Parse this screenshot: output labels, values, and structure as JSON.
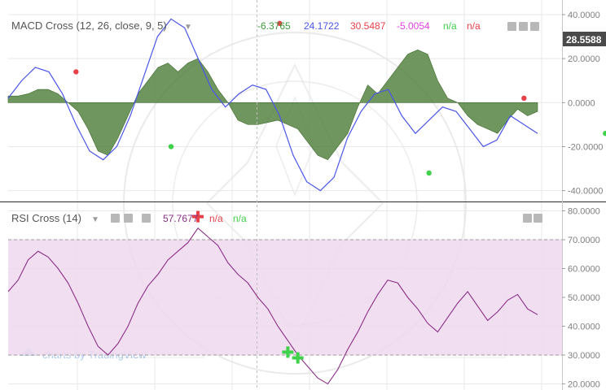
{
  "colors": {
    "histogram": "#4f7f3a",
    "macd_line": "#4a56e8",
    "cross_up": "#3fd14a",
    "cross_down": "#e8414a",
    "rsi_line": "#8a2f86",
    "rsi_band": "#efd9ef",
    "grid": "#e8e8e8",
    "axis_text": "#7f7f7f",
    "watermark": "#cfcfcf"
  },
  "macd_panel": {
    "label": "MACD Cross (12, 26, close, 9, 5)",
    "values": [
      {
        "text": "-6.3765",
        "color": "#3a9a3a"
      },
      {
        "text": "24.1722",
        "color": "#4a56e8"
      },
      {
        "text": "30.5487",
        "color": "#e8414a"
      },
      {
        "text": "-5.0054",
        "color": "#e040e0"
      },
      {
        "text": "n/a",
        "color": "#3fd14a"
      },
      {
        "text": "n/a",
        "color": "#e8414a"
      }
    ],
    "current_value": "28.5588",
    "icons": [
      "chart-settings-icon",
      "chart-settings-icon",
      "close-icon"
    ]
  },
  "rsi_panel": {
    "label": "RSI Cross (14)",
    "values": [
      {
        "text": "57.7677",
        "color": "#8a2f86"
      },
      {
        "text": "n/a",
        "color": "#e8414a"
      },
      {
        "text": "n/a",
        "color": "#3fd14a"
      }
    ],
    "icons": [
      "chart-settings-icon",
      "chart-settings-icon",
      "close-icon"
    ]
  },
  "watermark": {
    "logo_text": "charts by TradingView"
  },
  "chart_data": [
    {
      "type": "line",
      "title": "MACD Cross (12, 26, close, 9, 5)",
      "y_ticks": [
        "40.0000",
        "20.0000",
        "0.0000",
        "-20.0000",
        "-40.0000"
      ],
      "ylim": [
        -42,
        40
      ],
      "grid": true,
      "series": [
        {
          "kind": "area",
          "values": [
            3,
            3,
            4,
            6,
            6,
            4,
            0,
            -4,
            -12,
            -22,
            -24,
            -16,
            -6,
            4,
            10,
            16,
            18,
            14,
            18,
            20,
            14,
            6,
            0,
            -8,
            -10,
            -10,
            -9,
            -8,
            -10,
            -12,
            -18,
            -24,
            -26,
            -20,
            -14,
            -2,
            8,
            4,
            10,
            16,
            22,
            24,
            22,
            10,
            2,
            0,
            -6,
            -10,
            -12,
            -14,
            -8,
            -3,
            -6,
            -4
          ]
        },
        {
          "kind": "line",
          "values": [
            2,
            10,
            16,
            14,
            4,
            -10,
            -22,
            -26,
            -20,
            -6,
            12,
            30,
            38,
            34,
            20,
            6,
            -2,
            4,
            8,
            6,
            -6,
            -24,
            -36,
            -40,
            -34,
            -16,
            -4,
            4,
            6,
            -6,
            -14,
            -8,
            -2,
            -4,
            -12,
            -20,
            -17,
            -6,
            -10,
            -14
          ]
        }
      ],
      "markers": [
        {
          "x": 5,
          "y": 14,
          "kind": "cross-down"
        },
        {
          "x": 12,
          "y": -20,
          "kind": "cross-up"
        },
        {
          "x": 20,
          "y": 36,
          "kind": "cross-down"
        },
        {
          "x": 31,
          "y": -32,
          "kind": "cross-up"
        },
        {
          "x": 38,
          "y": 2,
          "kind": "cross-down"
        },
        {
          "x": 44,
          "y": -14,
          "kind": "cross-up"
        },
        {
          "x": 48,
          "y": -9,
          "kind": "cross-down"
        }
      ]
    },
    {
      "type": "line",
      "title": "RSI Cross (14)",
      "y_ticks": [
        "80.0000",
        "70.0000",
        "60.0000",
        "50.0000",
        "40.0000",
        "30.0000",
        "20.0000"
      ],
      "ylim": [
        19,
        81
      ],
      "bands": [
        70,
        30
      ],
      "series": [
        {
          "values": [
            52,
            56,
            63,
            66,
            64,
            60,
            55,
            48,
            40,
            33,
            30,
            34,
            40,
            48,
            54,
            58,
            63,
            66,
            69,
            74,
            71,
            68,
            62,
            58,
            55,
            50,
            46,
            40,
            35,
            30,
            26,
            22,
            20,
            25,
            32,
            38,
            45,
            51,
            56,
            55,
            50,
            46,
            41,
            38,
            43,
            48,
            52,
            47,
            42,
            45,
            49,
            51,
            46,
            44
          ]
        }
      ],
      "markers": [
        {
          "x": 19,
          "y": 78,
          "kind": "cross-down"
        },
        {
          "x": 28,
          "y": 31,
          "kind": "cross-up"
        },
        {
          "x": 29,
          "y": 29,
          "kind": "cross-up"
        }
      ]
    }
  ]
}
